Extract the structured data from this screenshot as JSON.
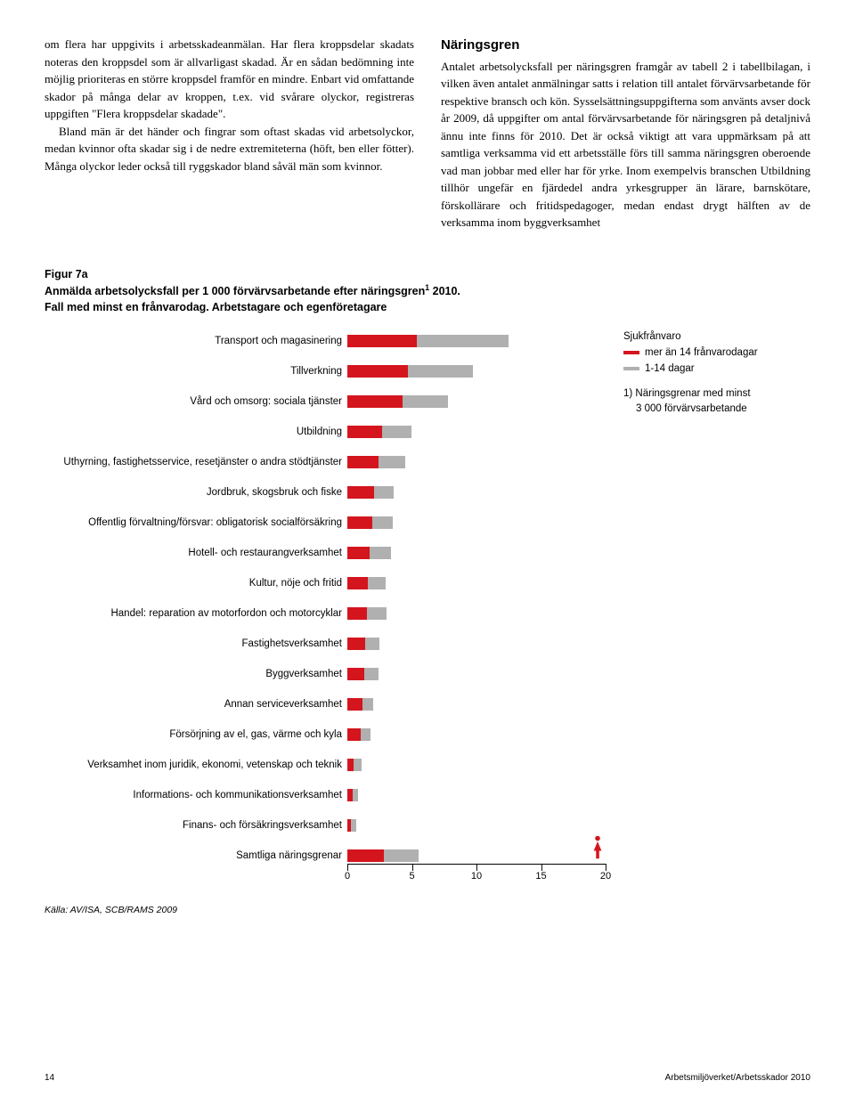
{
  "colors": {
    "red": "#d4151e",
    "grey": "#b0b0b0",
    "text": "#000000",
    "bg": "#ffffff"
  },
  "left_col": {
    "p1": "om flera har uppgivits i arbetsskadeanmälan. Har flera kroppsdelar skadats noteras den kroppsdel som är allvarligast skadad. Är en sådan bedömning inte möjlig prioriteras en större kroppsdel framför en mindre. Enbart vid omfattande skador på många delar av kroppen, t.ex. vid svårare olyckor, registreras uppgiften \"Flera kroppsdelar skadade\".",
    "p2": "Bland män är det händer och fingrar som oftast skadas vid arbetsolyckor, medan kvinnor ofta skadar sig i de nedre extremiteterna (höft, ben eller fötter). Många olyckor leder också till ryggskador bland såväl män som kvinnor."
  },
  "right_col": {
    "heading": "Näringsgren",
    "p1": "Antalet arbetsolycksfall per näringsgren framgår av tabell 2 i tabellbilagan, i vilken även antalet anmälningar satts i relation till antalet förvärvsarbetande för respektive bransch och kön. Sysselsättningsuppgifterna som använts avser dock år 2009, då uppgifter om antal förvärvsarbetande för näringsgren på detaljnivå ännu inte finns för 2010. Det är också viktigt att vara uppmärksam på att samtliga verksamma vid ett arbetsställe förs till samma näringsgren oberoende vad man jobbar med eller har för yrke. Inom exempelvis branschen Utbildning tillhör ungefär en fjärdedel andra yrkesgrupper än lärare, barnskötare, förskollärare och fritidspedagoger, medan endast drygt hälften av de verksamma inom byggverksamhet"
  },
  "figure": {
    "id": "Figur 7a",
    "title_line1": "Anmälda arbetsolycksfall per 1 000 förvärvsarbetande efter näringsgren",
    "title_sup": "1",
    "title_line1_end": " 2010.",
    "title_line2": "Fall med minst en frånvarodag. Arbetstagare och egenföretagare",
    "legend": {
      "title": "Sjukfrånvaro",
      "item_red": "mer än 14 frånvarodagar",
      "item_grey": "1-14 dagar",
      "foot_line1": "1) Näringsgrenar med minst",
      "foot_line2": "3 000 förvärvsarbetande"
    },
    "axis": {
      "min": 0,
      "max": 20,
      "ticks": [
        0,
        5,
        10,
        15,
        20
      ]
    },
    "bars": [
      {
        "label": "Transport och magasinering",
        "red": 5.4,
        "grey": 7.1
      },
      {
        "label": "Tillverkning",
        "red": 4.7,
        "grey": 5.0
      },
      {
        "label": "Vård och omsorg: sociala tjänster",
        "red": 4.3,
        "grey": 3.5
      },
      {
        "label": "Utbildning",
        "red": 2.7,
        "grey": 2.3
      },
      {
        "label": "Uthyrning, fastighetsservice, resetjänster o andra stödtjänster",
        "red": 2.4,
        "grey": 2.1
      },
      {
        "label": "Jordbruk, skogsbruk och fiske",
        "red": 2.1,
        "grey": 1.5
      },
      {
        "label": "Offentlig förvaltning/försvar: obligatorisk socialförsäkring",
        "red": 1.9,
        "grey": 1.6
      },
      {
        "label": "Hotell- och restaurangverksamhet",
        "red": 1.7,
        "grey": 1.7
      },
      {
        "label": "Kultur, nöje och fritid",
        "red": 1.6,
        "grey": 1.4
      },
      {
        "label": "Handel: reparation av motorfordon och motorcyklar",
        "red": 1.5,
        "grey": 1.5
      },
      {
        "label": "Fastighetsverksamhet",
        "red": 1.4,
        "grey": 1.1
      },
      {
        "label": "Byggverksamhet",
        "red": 1.3,
        "grey": 1.1
      },
      {
        "label": "Annan serviceverksamhet",
        "red": 1.2,
        "grey": 0.8
      },
      {
        "label": "Försörjning av el, gas, värme och kyla",
        "red": 1.0,
        "grey": 0.8
      },
      {
        "label": "Verksamhet inom juridik, ekonomi, vetenskap och teknik",
        "red": 0.5,
        "grey": 0.6
      },
      {
        "label": "Informations- och kommunikationsverksamhet",
        "red": 0.4,
        "grey": 0.4
      },
      {
        "label": "Finans- och försäkringsverksamhet",
        "red": 0.3,
        "grey": 0.4
      },
      {
        "label": "Samtliga näringsgrenar",
        "red": 2.8,
        "grey": 2.7,
        "icon": true
      }
    ],
    "source": "Källa: AV/ISA, SCB/RAMS 2009"
  },
  "footer": {
    "page": "14",
    "pub": "Arbetsmiljöverket/Arbetsskador 2010"
  }
}
